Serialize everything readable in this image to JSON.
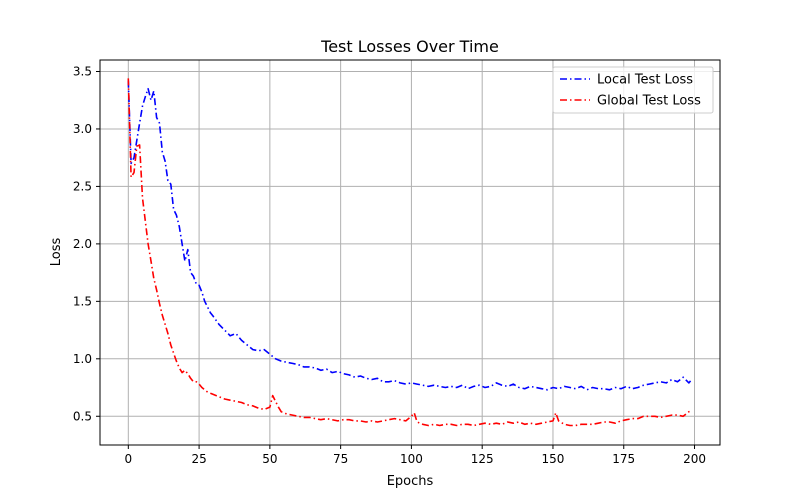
{
  "chart_data": {
    "type": "line",
    "title": "Test Losses Over Time",
    "xlabel": "Epochs",
    "ylabel": "Loss",
    "xlim": [
      -10,
      209
    ],
    "ylim": [
      0.25,
      3.6
    ],
    "xticks": [
      0,
      25,
      50,
      75,
      100,
      125,
      150,
      175,
      200
    ],
    "yticks": [
      0.5,
      1.0,
      1.5,
      2.0,
      2.5,
      3.0,
      3.5
    ],
    "xtick_labels": [
      "0",
      "25",
      "50",
      "75",
      "100",
      "125",
      "150",
      "175",
      "200"
    ],
    "ytick_labels": [
      "0.5",
      "1.0",
      "1.5",
      "2.0",
      "2.5",
      "3.0",
      "3.5"
    ],
    "grid": true,
    "legend_position": "top-right",
    "series": [
      {
        "name": "Local Test Loss",
        "color": "#0000ff",
        "linestyle": "dashdot",
        "x": [
          0,
          1,
          2,
          3,
          4,
          5,
          6,
          7,
          8,
          9,
          10,
          11,
          12,
          13,
          14,
          15,
          16,
          17,
          18,
          19,
          20,
          21,
          22,
          23,
          24,
          25,
          26,
          27,
          28,
          29,
          30,
          32,
          34,
          36,
          38,
          40,
          42,
          44,
          46,
          48,
          50,
          52,
          54,
          56,
          58,
          60,
          62,
          64,
          66,
          68,
          70,
          72,
          74,
          76,
          78,
          80,
          82,
          84,
          86,
          88,
          90,
          92,
          94,
          96,
          98,
          100,
          102,
          104,
          106,
          108,
          110,
          112,
          114,
          116,
          118,
          120,
          122,
          124,
          126,
          128,
          130,
          132,
          134,
          136,
          138,
          140,
          142,
          144,
          146,
          148,
          150,
          152,
          154,
          156,
          158,
          160,
          162,
          164,
          166,
          168,
          170,
          172,
          174,
          176,
          178,
          180,
          182,
          184,
          186,
          188,
          190,
          192,
          194,
          196,
          198,
          199
        ],
        "values": [
          3.42,
          2.7,
          2.75,
          2.9,
          3.05,
          3.2,
          3.28,
          3.35,
          3.25,
          3.33,
          3.1,
          3.05,
          2.8,
          2.72,
          2.55,
          2.52,
          2.3,
          2.25,
          2.15,
          2.0,
          1.85,
          1.95,
          1.75,
          1.72,
          1.65,
          1.64,
          1.58,
          1.5,
          1.45,
          1.4,
          1.37,
          1.3,
          1.25,
          1.2,
          1.22,
          1.16,
          1.12,
          1.08,
          1.07,
          1.08,
          1.04,
          1.0,
          0.98,
          0.97,
          0.96,
          0.95,
          0.93,
          0.93,
          0.92,
          0.9,
          0.91,
          0.88,
          0.89,
          0.87,
          0.86,
          0.84,
          0.85,
          0.83,
          0.82,
          0.83,
          0.8,
          0.8,
          0.81,
          0.79,
          0.78,
          0.79,
          0.78,
          0.77,
          0.76,
          0.77,
          0.76,
          0.75,
          0.76,
          0.75,
          0.77,
          0.74,
          0.76,
          0.77,
          0.75,
          0.76,
          0.79,
          0.77,
          0.76,
          0.78,
          0.75,
          0.74,
          0.76,
          0.75,
          0.74,
          0.73,
          0.75,
          0.74,
          0.76,
          0.75,
          0.74,
          0.76,
          0.73,
          0.75,
          0.74,
          0.74,
          0.73,
          0.75,
          0.74,
          0.76,
          0.74,
          0.75,
          0.77,
          0.78,
          0.79,
          0.8,
          0.79,
          0.82,
          0.8,
          0.84,
          0.79,
          0.82
        ]
      },
      {
        "name": "Global Test Loss",
        "color": "#ff0000",
        "linestyle": "dashdot",
        "x": [
          0,
          1,
          2,
          3,
          4,
          5,
          6,
          7,
          8,
          9,
          10,
          11,
          12,
          13,
          14,
          15,
          16,
          17,
          18,
          19,
          20,
          21,
          22,
          23,
          24,
          25,
          26,
          27,
          28,
          29,
          30,
          32,
          34,
          36,
          38,
          40,
          42,
          44,
          46,
          48,
          50,
          51,
          52,
          53,
          54,
          56,
          58,
          60,
          62,
          64,
          66,
          68,
          70,
          72,
          74,
          76,
          78,
          80,
          82,
          84,
          86,
          88,
          90,
          92,
          94,
          96,
          98,
          100,
          101,
          102,
          104,
          106,
          108,
          110,
          112,
          114,
          116,
          118,
          120,
          122,
          124,
          126,
          128,
          130,
          132,
          134,
          136,
          138,
          140,
          142,
          144,
          146,
          148,
          150,
          151,
          152,
          154,
          156,
          158,
          160,
          162,
          164,
          166,
          168,
          170,
          172,
          174,
          176,
          178,
          180,
          182,
          184,
          186,
          188,
          190,
          192,
          194,
          196,
          198,
          199
        ],
        "values": [
          3.44,
          2.58,
          2.62,
          2.85,
          2.86,
          2.4,
          2.2,
          2.0,
          1.85,
          1.7,
          1.6,
          1.48,
          1.38,
          1.3,
          1.22,
          1.12,
          1.05,
          0.98,
          0.92,
          0.88,
          0.9,
          0.87,
          0.83,
          0.8,
          0.8,
          0.78,
          0.75,
          0.73,
          0.71,
          0.7,
          0.69,
          0.67,
          0.65,
          0.64,
          0.63,
          0.62,
          0.6,
          0.59,
          0.57,
          0.56,
          0.58,
          0.68,
          0.63,
          0.58,
          0.54,
          0.52,
          0.51,
          0.5,
          0.49,
          0.49,
          0.48,
          0.47,
          0.48,
          0.47,
          0.46,
          0.47,
          0.47,
          0.46,
          0.46,
          0.45,
          0.46,
          0.45,
          0.46,
          0.47,
          0.48,
          0.47,
          0.46,
          0.5,
          0.53,
          0.45,
          0.43,
          0.42,
          0.43,
          0.42,
          0.43,
          0.43,
          0.42,
          0.43,
          0.43,
          0.42,
          0.43,
          0.44,
          0.43,
          0.44,
          0.43,
          0.45,
          0.44,
          0.45,
          0.43,
          0.44,
          0.43,
          0.44,
          0.45,
          0.46,
          0.53,
          0.46,
          0.43,
          0.42,
          0.42,
          0.43,
          0.43,
          0.43,
          0.44,
          0.45,
          0.45,
          0.44,
          0.46,
          0.47,
          0.48,
          0.48,
          0.5,
          0.5,
          0.5,
          0.49,
          0.5,
          0.51,
          0.51,
          0.5,
          0.54,
          0.55
        ]
      }
    ]
  }
}
